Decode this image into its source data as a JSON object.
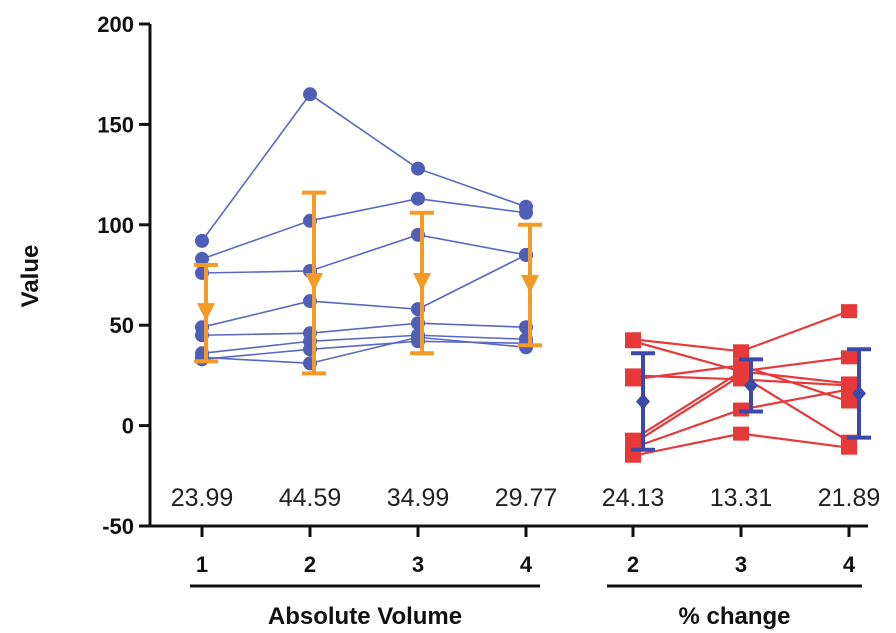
{
  "chart_data": {
    "type": "line",
    "ylabel": "Value",
    "ylim": [
      -50,
      200
    ],
    "yticks": [
      -50,
      0,
      50,
      100,
      150,
      200
    ],
    "groups": [
      {
        "name": "Absolute Volume",
        "categories": [
          "1",
          "2",
          "3",
          "4"
        ],
        "point_color": "#4f5fb8",
        "line_color": "#5a68c0",
        "summary_color": "#f39a27",
        "subjects": [
          [
            92,
            165,
            128,
            109
          ],
          [
            83,
            102,
            113,
            106
          ],
          [
            76,
            77,
            95,
            85
          ],
          [
            49,
            62,
            58,
            85
          ],
          [
            45,
            46,
            51,
            49
          ],
          [
            36,
            42,
            45,
            43
          ],
          [
            33,
            38,
            42,
            41
          ],
          [
            34,
            31,
            44,
            39
          ]
        ],
        "mean": [
          56,
          71,
          71,
          70
        ],
        "error": [
          24,
          45,
          35,
          30
        ],
        "sd_labels": [
          "23.99",
          "44.59",
          "34.99",
          "29.77"
        ]
      },
      {
        "name": "% change",
        "categories": [
          "2",
          "3",
          "4"
        ],
        "point_color": "#e63a3a",
        "line_color": "#e63a3a",
        "summary_color": "#3b4aa8",
        "subjects": [
          [
            43,
            37,
            57
          ],
          [
            42,
            27,
            34
          ],
          [
            25,
            23,
            20
          ],
          [
            23,
            30,
            12
          ],
          [
            -7,
            27,
            21
          ],
          [
            -11,
            8,
            18
          ],
          [
            -15,
            -4,
            -11
          ],
          [
            -9,
            25,
            -8
          ]
        ],
        "mean": [
          12,
          20,
          16
        ],
        "error": [
          24,
          13,
          22
        ],
        "sd_labels": [
          "24.13",
          "13.31",
          "21.89"
        ]
      }
    ]
  }
}
